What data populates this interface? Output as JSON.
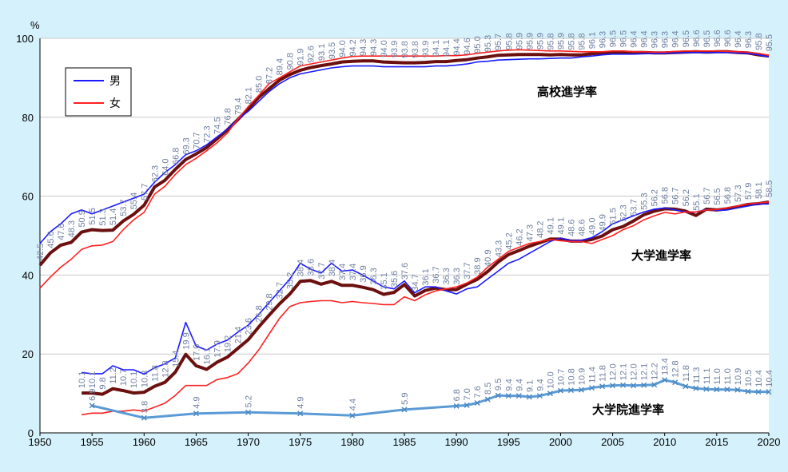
{
  "chart_data": {
    "type": "line",
    "unit_label": "%",
    "xlim": [
      1950,
      2020
    ],
    "ylim": [
      0,
      100
    ],
    "x_ticks": [
      "1950",
      "1955",
      "1960",
      "1965",
      "1970",
      "1975",
      "1980",
      "1985",
      "1990",
      "1995",
      "2000",
      "2005",
      "2010",
      "2015",
      "2020"
    ],
    "y_ticks": [
      "0",
      "20",
      "40",
      "60",
      "80",
      "100"
    ],
    "legend": {
      "position": "top-left",
      "entries": [
        {
          "name": "男",
          "color": "#1a1aff"
        },
        {
          "name": "女",
          "color": "#ff2020"
        }
      ]
    },
    "annotations": {
      "high_school": "高校進学率",
      "university": "大学進学率",
      "graduate": "大学院進学率"
    },
    "colors": {
      "background": "#d5f1fb",
      "plot_area": "#ffffff",
      "male": "#1a1aff",
      "female": "#ff2020",
      "total": "#6b0f0f",
      "graduate": "#5b9bd5",
      "data_label": "#6f7fa0"
    },
    "series": [
      {
        "id": "hs_male",
        "group": "high_school",
        "x": [
          1950,
          1951,
          1952,
          1953,
          1954,
          1955,
          1956,
          1957,
          1958,
          1959,
          1960,
          1961,
          1962,
          1963,
          1964,
          1965,
          1966,
          1967,
          1968,
          1969,
          1970,
          1971,
          1972,
          1973,
          1974,
          1975,
          1976,
          1977,
          1978,
          1979,
          1980,
          1981,
          1982,
          1983,
          1984,
          1985,
          1986,
          1987,
          1988,
          1989,
          1990,
          1991,
          1992,
          1993,
          1994,
          1995,
          1996,
          1997,
          1998,
          1999,
          2000,
          2001,
          2002,
          2003,
          2004,
          2005,
          2006,
          2007,
          2008,
          2009,
          2010,
          2011,
          2012,
          2013,
          2014,
          2015,
          2016,
          2017,
          2018,
          2019,
          2020
        ],
        "values": [
          48.0,
          51.0,
          53.0,
          55.5,
          56.5,
          55.5,
          56.5,
          57.5,
          58.5,
          59.5,
          60.5,
          63.5,
          66.0,
          68.0,
          70.5,
          71.5,
          73.0,
          75.0,
          77.0,
          79.5,
          81.5,
          84.0,
          86.5,
          88.5,
          90.0,
          91.0,
          91.5,
          92.0,
          92.5,
          92.8,
          93.0,
          93.0,
          93.0,
          92.8,
          92.8,
          92.8,
          92.8,
          92.8,
          93.0,
          93.0,
          93.2,
          93.5,
          94.0,
          94.2,
          94.5,
          94.6,
          94.7,
          94.8,
          94.8,
          94.9,
          95.0,
          95.0,
          95.3,
          95.5,
          95.8,
          96.0,
          96.0,
          96.0,
          96.1,
          96.2,
          96.2,
          96.3,
          96.4,
          96.4,
          96.4,
          96.4,
          96.4,
          96.3,
          96.2,
          95.8,
          95.3
        ]
      },
      {
        "id": "hs_female",
        "group": "high_school",
        "x": [
          1950,
          1951,
          1952,
          1953,
          1954,
          1955,
          1956,
          1957,
          1958,
          1959,
          1960,
          1961,
          1962,
          1963,
          1964,
          1965,
          1966,
          1967,
          1968,
          1969,
          1970,
          1971,
          1972,
          1973,
          1974,
          1975,
          1976,
          1977,
          1978,
          1979,
          1980,
          1981,
          1982,
          1983,
          1984,
          1985,
          1986,
          1987,
          1988,
          1989,
          1990,
          1991,
          1992,
          1993,
          1994,
          1995,
          1996,
          1997,
          1998,
          1999,
          2000,
          2001,
          2002,
          2003,
          2004,
          2005,
          2006,
          2007,
          2008,
          2009,
          2010,
          2011,
          2012,
          2013,
          2014,
          2015,
          2016,
          2017,
          2018,
          2019,
          2020
        ],
        "values": [
          36.7,
          39.5,
          42.0,
          44.0,
          46.5,
          47.4,
          47.6,
          48.5,
          51.5,
          54.0,
          55.9,
          60.5,
          62.5,
          65.5,
          68.0,
          69.6,
          71.5,
          73.5,
          76.0,
          79.5,
          82.7,
          85.5,
          88.5,
          90.0,
          91.5,
          93.0,
          93.5,
          94.0,
          94.5,
          95.0,
          95.4,
          95.5,
          95.5,
          95.5,
          95.5,
          95.5,
          95.5,
          95.5,
          95.5,
          95.6,
          95.6,
          95.8,
          96.2,
          96.5,
          96.8,
          97.0,
          97.1,
          97.0,
          96.9,
          96.8,
          96.8,
          96.7,
          96.6,
          96.6,
          96.6,
          96.8,
          96.8,
          96.6,
          96.6,
          96.5,
          96.5,
          96.7,
          96.8,
          96.8,
          96.8,
          96.8,
          96.7,
          96.6,
          96.5,
          96.2,
          95.7
        ]
      },
      {
        "id": "hs_total",
        "group": "high_school",
        "x": [
          1950,
          1951,
          1952,
          1953,
          1954,
          1955,
          1956,
          1957,
          1958,
          1959,
          1960,
          1961,
          1962,
          1963,
          1964,
          1965,
          1966,
          1967,
          1968,
          1969,
          1970,
          1971,
          1972,
          1973,
          1974,
          1975,
          1976,
          1977,
          1978,
          1979,
          1980,
          1981,
          1982,
          1983,
          1984,
          1985,
          1986,
          1987,
          1988,
          1989,
          1990,
          1991,
          1992,
          1993,
          1994,
          1995,
          1996,
          1997,
          1998,
          1999,
          2000,
          2001,
          2002,
          2003,
          2004,
          2005,
          2006,
          2007,
          2008,
          2009,
          2010,
          2011,
          2012,
          2013,
          2014,
          2015,
          2016,
          2017,
          2018,
          2019,
          2020
        ],
        "values": [
          42.5,
          45.6,
          47.6,
          48.3,
          50.9,
          51.5,
          51.3,
          51.4,
          53.7,
          55.4,
          57.7,
          62.3,
          64.0,
          66.8,
          69.3,
          70.7,
          72.3,
          74.5,
          76.8,
          79.4,
          82.1,
          85.0,
          87.2,
          89.4,
          90.8,
          91.9,
          92.6,
          93.1,
          93.5,
          94.0,
          94.2,
          94.3,
          94.3,
          94.0,
          93.9,
          93.8,
          93.8,
          93.9,
          94.1,
          94.1,
          94.4,
          94.6,
          95.0,
          95.3,
          95.7,
          95.8,
          95.9,
          95.9,
          95.9,
          95.8,
          95.9,
          95.8,
          95.8,
          96.1,
          96.3,
          96.5,
          96.5,
          96.4,
          96.4,
          96.3,
          96.3,
          96.4,
          96.5,
          96.6,
          96.5,
          96.6,
          96.6,
          96.4,
          96.3,
          95.8,
          95.5
        ],
        "labels_from": 1950
      },
      {
        "id": "uni_male",
        "group": "university",
        "x": [
          1954,
          1955,
          1956,
          1957,
          1958,
          1959,
          1960,
          1961,
          1962,
          1963,
          1964,
          1965,
          1966,
          1967,
          1968,
          1969,
          1970,
          1971,
          1972,
          1973,
          1974,
          1975,
          1976,
          1977,
          1978,
          1979,
          1980,
          1981,
          1982,
          1983,
          1984,
          1985,
          1986,
          1987,
          1988,
          1989,
          1990,
          1991,
          1992,
          1993,
          1994,
          1995,
          1996,
          1997,
          1998,
          1999,
          2000,
          2001,
          2002,
          2003,
          2004,
          2005,
          2006,
          2007,
          2008,
          2009,
          2010,
          2011,
          2012,
          2013,
          2014,
          2015,
          2016,
          2017,
          2018,
          2019,
          2020
        ],
        "values": [
          15.3,
          15.0,
          15.0,
          17.0,
          16.0,
          16.0,
          14.9,
          16.5,
          17.5,
          19.0,
          28.0,
          22.0,
          21.0,
          22.5,
          23.5,
          25.5,
          27.3,
          30.0,
          33.0,
          36.0,
          39.0,
          43.0,
          41.5,
          40.5,
          43.0,
          41.0,
          41.3,
          40.0,
          38.5,
          37.0,
          36.5,
          38.5,
          35.5,
          37.0,
          37.0,
          36.0,
          35.2,
          36.5,
          37.0,
          39.0,
          41.0,
          43.0,
          44.0,
          45.5,
          47.0,
          48.5,
          49.4,
          48.7,
          48.8,
          49.5,
          51.0,
          53.0,
          54.0,
          55.0,
          56.0,
          56.7,
          57.0,
          56.5,
          56.0,
          56.0,
          56.6,
          56.4,
          56.5,
          57.0,
          57.5,
          58.0,
          58.0
        ]
      },
      {
        "id": "uni_female",
        "group": "university",
        "x": [
          1954,
          1955,
          1956,
          1957,
          1958,
          1959,
          1960,
          1961,
          1962,
          1963,
          1964,
          1965,
          1966,
          1967,
          1968,
          1969,
          1970,
          1971,
          1972,
          1973,
          1974,
          1975,
          1976,
          1977,
          1978,
          1979,
          1980,
          1981,
          1982,
          1983,
          1984,
          1985,
          1986,
          1987,
          1988,
          1989,
          1990,
          1991,
          1992,
          1993,
          1994,
          1995,
          1996,
          1997,
          1998,
          1999,
          2000,
          2001,
          2002,
          2003,
          2004,
          2005,
          2006,
          2007,
          2008,
          2009,
          2010,
          2011,
          2012,
          2013,
          2014,
          2015,
          2016,
          2017,
          2018,
          2019,
          2020
        ],
        "values": [
          4.6,
          5.0,
          5.0,
          5.5,
          5.5,
          5.8,
          5.5,
          6.5,
          7.5,
          9.5,
          12.0,
          12.0,
          12.0,
          13.5,
          14.0,
          15.0,
          17.7,
          21.0,
          25.0,
          29.0,
          32.0,
          33.0,
          33.3,
          33.5,
          33.5,
          33.0,
          33.3,
          33.0,
          32.8,
          32.5,
          32.5,
          34.5,
          33.5,
          35.0,
          36.0,
          36.5,
          37.0,
          38.0,
          39.5,
          42.0,
          44.0,
          46.0,
          47.0,
          48.0,
          48.5,
          49.0,
          48.7,
          48.5,
          48.5,
          48.0,
          49.0,
          50.0,
          51.5,
          52.5,
          54.0,
          55.0,
          55.9,
          55.5,
          56.0,
          56.0,
          56.5,
          56.6,
          57.0,
          57.5,
          58.0,
          58.3,
          58.5
        ]
      },
      {
        "id": "uni_total",
        "group": "university",
        "x": [
          1954,
          1955,
          1956,
          1957,
          1958,
          1959,
          1960,
          1961,
          1962,
          1963,
          1964,
          1965,
          1966,
          1967,
          1968,
          1969,
          1970,
          1971,
          1972,
          1973,
          1974,
          1975,
          1976,
          1977,
          1978,
          1979,
          1980,
          1981,
          1982,
          1983,
          1984,
          1985,
          1986,
          1987,
          1988,
          1989,
          1990,
          1991,
          1992,
          1993,
          1994,
          1995,
          1996,
          1997,
          1998,
          1999,
          2000,
          2001,
          2002,
          2003,
          2004,
          2005,
          2006,
          2007,
          2008,
          2009,
          2010,
          2011,
          2012,
          2013,
          2014,
          2015,
          2016,
          2017,
          2018,
          2019,
          2020
        ],
        "values": [
          10.1,
          10.1,
          9.8,
          11.2,
          10.7,
          10.1,
          10.3,
          11.8,
          12.8,
          15.4,
          19.9,
          17.0,
          16.1,
          17.9,
          19.2,
          21.4,
          23.6,
          26.8,
          29.8,
          32.7,
          35.2,
          38.4,
          38.6,
          37.7,
          38.4,
          37.4,
          37.4,
          36.9,
          36.3,
          35.1,
          35.6,
          37.6,
          34.7,
          36.1,
          36.7,
          36.3,
          36.3,
          37.7,
          38.9,
          40.9,
          43.3,
          45.2,
          46.2,
          47.3,
          48.2,
          49.1,
          49.1,
          48.6,
          48.6,
          49.0,
          49.9,
          51.5,
          52.3,
          53.7,
          55.3,
          56.2,
          56.8,
          56.7,
          56.2,
          55.1,
          56.7,
          56.5,
          56.8,
          57.3,
          57.9,
          58.1,
          58.5
        ],
        "labels_from": 1954
      },
      {
        "id": "grad_total",
        "group": "graduate",
        "x": [
          1955,
          1960,
          1965,
          1970,
          1975,
          1980,
          1985,
          1990,
          1991,
          1992,
          1993,
          1994,
          1995,
          1996,
          1997,
          1998,
          1999,
          2000,
          2001,
          2002,
          2003,
          2004,
          2005,
          2006,
          2007,
          2008,
          2009,
          2010,
          2011,
          2012,
          2013,
          2014,
          2015,
          2016,
          2017,
          2018,
          2019,
          2020
        ],
        "values": [
          6.9,
          3.8,
          4.9,
          5.2,
          4.9,
          4.4,
          5.9,
          6.8,
          7.0,
          7.6,
          8.5,
          9.5,
          9.4,
          9.4,
          9.1,
          9.4,
          10.0,
          10.7,
          10.8,
          10.9,
          11.4,
          11.8,
          12.0,
          12.1,
          12.0,
          12.1,
          12.2,
          13.4,
          12.8,
          11.8,
          11.3,
          11.1,
          11.0,
          11.0,
          10.9,
          10.5,
          10.4,
          10.4
        ],
        "labels_from": 1955
      }
    ]
  }
}
